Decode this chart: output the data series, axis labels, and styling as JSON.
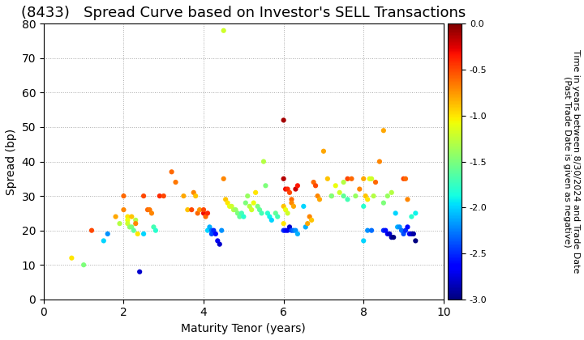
{
  "title": "(8433)   Spread Curve based on Investor's SELL Transactions",
  "xlabel": "Maturity Tenor (years)",
  "ylabel": "Spread (bp)",
  "colorbar_label": "Time in years between 8/30/2024 and Trade Date\n(Past Trade Date is given as negative)",
  "xlim": [
    0,
    10
  ],
  "ylim": [
    0,
    80
  ],
  "xticks": [
    0,
    2,
    4,
    6,
    8,
    10
  ],
  "yticks": [
    0,
    10,
    20,
    30,
    40,
    50,
    60,
    70,
    80
  ],
  "cmap": "jet",
  "vmin": -3.0,
  "vmax": 0.0,
  "colorbar_ticks": [
    0.0,
    -0.5,
    -1.0,
    -1.5,
    -2.0,
    -2.5,
    -3.0
  ],
  "scatter_points": [
    [
      0.7,
      12,
      -1.0
    ],
    [
      1.0,
      10,
      -1.5
    ],
    [
      1.2,
      20,
      -0.5
    ],
    [
      1.5,
      17,
      -2.0
    ],
    [
      1.6,
      19,
      -2.2
    ],
    [
      1.8,
      24,
      -0.8
    ],
    [
      1.9,
      22,
      -1.3
    ],
    [
      2.0,
      30,
      -0.6
    ],
    [
      2.0,
      26,
      -0.7
    ],
    [
      2.1,
      24,
      -1.0
    ],
    [
      2.1,
      23,
      -1.1
    ],
    [
      2.1,
      22,
      -1.2
    ],
    [
      2.15,
      21,
      -1.4
    ],
    [
      2.2,
      24,
      -0.9
    ],
    [
      2.2,
      21,
      -1.5
    ],
    [
      2.25,
      20,
      -1.6
    ],
    [
      2.3,
      23,
      -1.3
    ],
    [
      2.3,
      22,
      -0.7
    ],
    [
      2.35,
      19,
      -1.0
    ],
    [
      2.4,
      8,
      -2.8
    ],
    [
      2.5,
      19,
      -2.0
    ],
    [
      2.5,
      30,
      -0.5
    ],
    [
      2.6,
      26,
      -0.6
    ],
    [
      2.65,
      26,
      -0.65
    ],
    [
      2.7,
      25,
      -0.7
    ],
    [
      2.75,
      21,
      -1.7
    ],
    [
      2.8,
      20,
      -1.8
    ],
    [
      2.9,
      30,
      -0.4
    ],
    [
      3.0,
      30,
      -0.5
    ],
    [
      3.2,
      37,
      -0.6
    ],
    [
      3.3,
      34,
      -0.65
    ],
    [
      3.5,
      30,
      -0.8
    ],
    [
      3.6,
      26,
      -0.9
    ],
    [
      3.7,
      26,
      -0.5
    ],
    [
      3.75,
      31,
      -0.7
    ],
    [
      3.8,
      30,
      -0.9
    ],
    [
      3.85,
      25,
      -0.6
    ],
    [
      3.9,
      26,
      -0.75
    ],
    [
      4.0,
      25,
      -0.3
    ],
    [
      4.0,
      26,
      -0.5
    ],
    [
      4.05,
      24,
      -0.6
    ],
    [
      4.1,
      25,
      -0.4
    ],
    [
      4.1,
      20,
      -2.0
    ],
    [
      4.15,
      21,
      -2.1
    ],
    [
      4.2,
      20,
      -2.3
    ],
    [
      4.2,
      19,
      -2.4
    ],
    [
      4.25,
      20,
      -2.5
    ],
    [
      4.3,
      19,
      -2.6
    ],
    [
      4.35,
      17,
      -2.7
    ],
    [
      4.4,
      16,
      -2.8
    ],
    [
      4.45,
      20,
      -2.2
    ],
    [
      4.5,
      35,
      -0.7
    ],
    [
      4.55,
      29,
      -0.9
    ],
    [
      4.6,
      28,
      -1.0
    ],
    [
      4.65,
      27,
      -1.1
    ],
    [
      4.7,
      27,
      -1.2
    ],
    [
      4.75,
      26,
      -1.3
    ],
    [
      4.8,
      26,
      -1.4
    ],
    [
      4.85,
      25,
      -1.5
    ],
    [
      4.9,
      24,
      -1.6
    ],
    [
      4.95,
      25,
      -1.7
    ],
    [
      5.0,
      24,
      -1.8
    ],
    [
      5.05,
      28,
      -1.5
    ],
    [
      5.1,
      30,
      -1.4
    ],
    [
      5.15,
      27,
      -1.3
    ],
    [
      5.2,
      26,
      -1.2
    ],
    [
      5.25,
      28,
      -1.1
    ],
    [
      5.3,
      31,
      -1.0
    ],
    [
      5.35,
      27,
      -1.5
    ],
    [
      5.4,
      26,
      -1.6
    ],
    [
      5.45,
      25,
      -1.7
    ],
    [
      5.5,
      40,
      -1.3
    ],
    [
      5.55,
      33,
      -1.5
    ],
    [
      5.6,
      25,
      -1.8
    ],
    [
      5.65,
      24,
      -1.9
    ],
    [
      5.7,
      23,
      -2.0
    ],
    [
      5.8,
      25,
      -1.6
    ],
    [
      5.85,
      24,
      -1.7
    ],
    [
      4.5,
      78,
      -1.2
    ],
    [
      6.0,
      52,
      -0.1
    ],
    [
      6.0,
      35,
      -0.15
    ],
    [
      6.05,
      32,
      -0.3
    ],
    [
      6.1,
      32,
      -0.4
    ],
    [
      6.15,
      31,
      -0.5
    ],
    [
      6.2,
      29,
      -0.6
    ],
    [
      6.2,
      28,
      -0.7
    ],
    [
      6.25,
      27,
      -0.8
    ],
    [
      6.3,
      32,
      -0.2
    ],
    [
      6.35,
      33,
      -0.35
    ],
    [
      6.0,
      27,
      -0.9
    ],
    [
      6.0,
      22,
      -1.0
    ],
    [
      6.05,
      26,
      -1.1
    ],
    [
      6.1,
      25,
      -1.2
    ],
    [
      6.0,
      20,
      -2.5
    ],
    [
      6.05,
      20,
      -2.6
    ],
    [
      6.1,
      20,
      -2.7
    ],
    [
      6.15,
      21,
      -2.8
    ],
    [
      6.2,
      20,
      -2.4
    ],
    [
      6.25,
      20,
      -2.3
    ],
    [
      6.3,
      20,
      -2.2
    ],
    [
      6.35,
      19,
      -2.1
    ],
    [
      6.5,
      27,
      -2.0
    ],
    [
      6.55,
      21,
      -2.1
    ],
    [
      6.6,
      22,
      -0.8
    ],
    [
      6.65,
      24,
      -0.7
    ],
    [
      6.7,
      23,
      -0.9
    ],
    [
      6.75,
      34,
      -0.6
    ],
    [
      6.8,
      33,
      -0.5
    ],
    [
      6.85,
      30,
      -0.7
    ],
    [
      6.9,
      29,
      -0.8
    ],
    [
      7.0,
      43,
      -0.8
    ],
    [
      7.1,
      35,
      -0.9
    ],
    [
      7.2,
      30,
      -1.0
    ],
    [
      7.3,
      33,
      -1.1
    ],
    [
      7.4,
      31,
      -1.2
    ],
    [
      7.5,
      34,
      -1.3
    ],
    [
      7.6,
      35,
      -0.5
    ],
    [
      7.7,
      35,
      -0.6
    ],
    [
      7.8,
      30,
      -1.4
    ],
    [
      7.9,
      32,
      -0.7
    ],
    [
      8.0,
      35,
      -0.8
    ],
    [
      8.05,
      30,
      -0.9
    ],
    [
      8.1,
      29,
      -1.0
    ],
    [
      8.15,
      35,
      -1.1
    ],
    [
      8.2,
      35,
      -1.2
    ],
    [
      8.25,
      30,
      -1.3
    ],
    [
      8.3,
      34,
      -0.6
    ],
    [
      8.4,
      40,
      -0.7
    ],
    [
      8.5,
      49,
      -0.8
    ],
    [
      7.2,
      30,
      -1.5
    ],
    [
      7.5,
      30,
      -1.6
    ],
    [
      7.6,
      29,
      -1.7
    ],
    [
      8.0,
      27,
      -1.8
    ],
    [
      8.5,
      28,
      -1.5
    ],
    [
      8.6,
      30,
      -1.4
    ],
    [
      8.7,
      31,
      -1.3
    ],
    [
      8.8,
      25,
      -2.0
    ],
    [
      8.85,
      21,
      -2.1
    ],
    [
      8.9,
      21,
      -2.2
    ],
    [
      8.95,
      20,
      -2.3
    ],
    [
      9.0,
      19,
      -2.4
    ],
    [
      9.05,
      20,
      -2.5
    ],
    [
      9.1,
      21,
      -2.6
    ],
    [
      9.15,
      19,
      -2.7
    ],
    [
      9.2,
      19,
      -2.8
    ],
    [
      9.25,
      19,
      -2.9
    ],
    [
      9.3,
      17,
      -3.0
    ],
    [
      8.5,
      20,
      -2.5
    ],
    [
      8.55,
      20,
      -2.6
    ],
    [
      8.6,
      19,
      -2.7
    ],
    [
      8.65,
      19,
      -2.8
    ],
    [
      8.7,
      18,
      -2.9
    ],
    [
      8.75,
      18,
      -3.0
    ],
    [
      9.0,
      35,
      -0.5
    ],
    [
      9.05,
      35,
      -0.6
    ],
    [
      9.1,
      29,
      -0.7
    ],
    [
      9.2,
      24,
      -1.8
    ],
    [
      9.3,
      25,
      -1.9
    ],
    [
      8.0,
      17,
      -2.0
    ],
    [
      8.1,
      20,
      -2.2
    ],
    [
      8.2,
      20,
      -2.3
    ]
  ],
  "marker_size": 20,
  "background_color": "#ffffff",
  "grid_color": "#aaaaaa",
  "title_fontsize": 13,
  "axis_fontsize": 10,
  "colorbar_fontsize": 8
}
